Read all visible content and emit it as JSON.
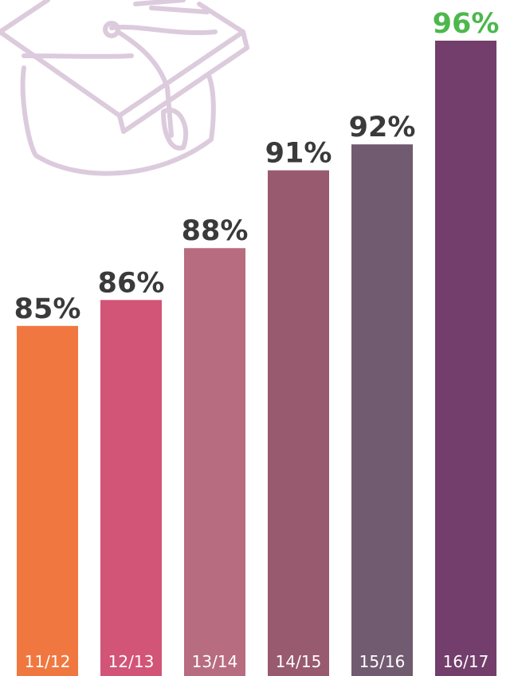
{
  "chart_data": {
    "type": "bar",
    "categories": [
      "11/12",
      "12/13",
      "13/14",
      "14/15",
      "15/16",
      "16/17"
    ],
    "values": [
      85,
      86,
      88,
      91,
      92,
      96
    ],
    "value_labels": [
      "85%",
      "86%",
      "88%",
      "91%",
      "92%",
      "96%"
    ],
    "colors": [
      "#f07840",
      "#d25477",
      "#b86c80",
      "#985a6e",
      "#715b70",
      "#733e6b"
    ],
    "value_label_colors": [
      "#3a3a3a",
      "#3a3a3a",
      "#3a3a3a",
      "#3a3a3a",
      "#3a3a3a",
      "#4cb84c"
    ],
    "ylim": [
      71.5,
      96
    ]
  }
}
